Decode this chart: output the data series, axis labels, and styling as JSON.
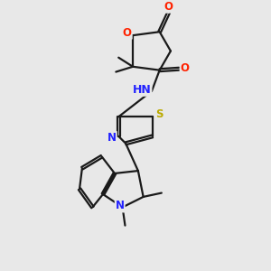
{
  "bg_color": "#e8e8e8",
  "bond_color": "#1a1a1a",
  "bond_width": 1.6,
  "atom_colors": {
    "O": "#ff2200",
    "N": "#2222ff",
    "S": "#bbaa00",
    "C": "#1a1a1a",
    "H": "#888888"
  },
  "font_size": 8.5,
  "fig_width": 3.0,
  "fig_height": 3.0,
  "dpi": 100,
  "xlim": [
    0,
    10
  ],
  "ylim": [
    0,
    10
  ]
}
